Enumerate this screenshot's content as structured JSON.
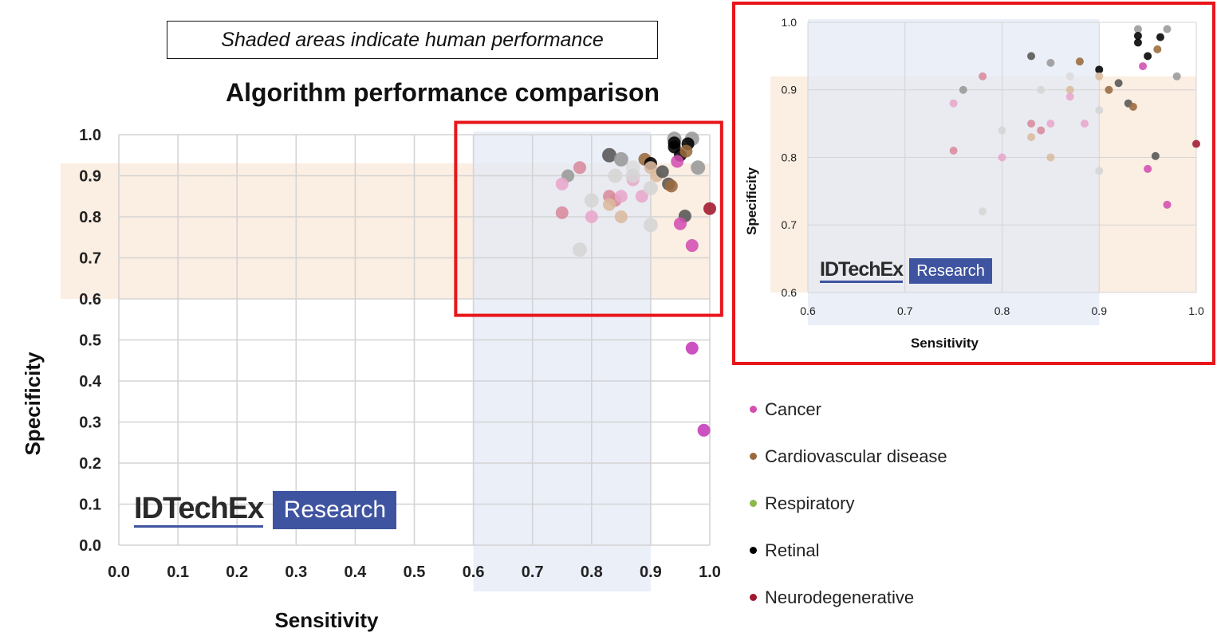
{
  "note": "Shaded areas indicate human performance",
  "colors": {
    "cancer": "#d24fb0",
    "cardio": "#9a6a3e",
    "respiratory": "#8db84a",
    "retinal": "#000000",
    "neuro": "#a0182e",
    "human_spec_band": "#fbeee2",
    "human_sens_band": "#e3e9f6",
    "highlight": "#e8161b",
    "logo_blue": "#3f54a0"
  },
  "legend": [
    {
      "label": "Cancer",
      "color": "#d24fb0"
    },
    {
      "label": "Cardiovascular disease",
      "color": "#9a6a3e"
    },
    {
      "label": "Respiratory",
      "color": "#8db84a"
    },
    {
      "label": "Retinal",
      "color": "#000000"
    },
    {
      "label": "Neurodegenerative",
      "color": "#a0182e"
    }
  ],
  "logo": {
    "brand": "IDTechEx",
    "badge": "Research"
  },
  "chart_data": [
    {
      "type": "scatter",
      "title": "Algorithm performance comparison",
      "xlabel": "Sensitivity",
      "ylabel": "Specificity",
      "xlim": [
        0.0,
        1.0
      ],
      "ylim": [
        0.0,
        1.0
      ],
      "xticks": [
        "0.0",
        "0.1",
        "0.2",
        "0.3",
        "0.4",
        "0.5",
        "0.6",
        "0.7",
        "0.8",
        "0.9",
        "1.0"
      ],
      "yticks": [
        "0.0",
        "0.1",
        "0.2",
        "0.3",
        "0.4",
        "0.5",
        "0.6",
        "0.7",
        "0.8",
        "0.9",
        "1.0"
      ],
      "grid": true,
      "human_performance": {
        "sensitivity": [
          0.6,
          0.9
        ],
        "specificity": [
          0.6,
          0.93
        ]
      },
      "highlight_region": {
        "sensitivity": [
          0.57,
          1.02
        ],
        "specificity": [
          0.56,
          1.03
        ]
      },
      "points": [
        {
          "x": 0.83,
          "y": 0.95,
          "color": "#555555",
          "r": 9
        },
        {
          "x": 0.85,
          "y": 0.94,
          "color": "#999999",
          "r": 9
        },
        {
          "x": 0.87,
          "y": 0.92,
          "color": "#dcdcdc",
          "r": 9
        },
        {
          "x": 0.78,
          "y": 0.92,
          "color": "#d88a9c",
          "r": 8
        },
        {
          "x": 0.76,
          "y": 0.9,
          "color": "#999999",
          "r": 8
        },
        {
          "x": 0.84,
          "y": 0.9,
          "color": "#d5d5d5",
          "r": 9
        },
        {
          "x": 0.87,
          "y": 0.89,
          "color": "#e8a6cb",
          "r": 8
        },
        {
          "x": 0.75,
          "y": 0.88,
          "color": "#e8a6cb",
          "r": 8
        },
        {
          "x": 0.8,
          "y": 0.84,
          "color": "#d5d5d5",
          "r": 9
        },
        {
          "x": 0.83,
          "y": 0.85,
          "color": "#d88a9c",
          "r": 8
        },
        {
          "x": 0.84,
          "y": 0.84,
          "color": "#d88a9c",
          "r": 8
        },
        {
          "x": 0.85,
          "y": 0.85,
          "color": "#e8a6cb",
          "r": 8
        },
        {
          "x": 0.83,
          "y": 0.83,
          "color": "#d9b99d",
          "r": 8
        },
        {
          "x": 0.885,
          "y": 0.85,
          "color": "#e8a6cb",
          "r": 8
        },
        {
          "x": 0.75,
          "y": 0.81,
          "color": "#d88a9c",
          "r": 8
        },
        {
          "x": 0.8,
          "y": 0.8,
          "color": "#e8a6cb",
          "r": 8
        },
        {
          "x": 0.85,
          "y": 0.8,
          "color": "#d9b99d",
          "r": 8
        },
        {
          "x": 0.78,
          "y": 0.72,
          "color": "#d5d5d5",
          "r": 9
        },
        {
          "x": 0.9,
          "y": 0.78,
          "color": "#d5d5d5",
          "r": 9
        },
        {
          "x": 0.9,
          "y": 0.87,
          "color": "#d5d5d5",
          "r": 9
        },
        {
          "x": 0.87,
          "y": 0.9,
          "color": "#d5d5d5",
          "r": 9
        },
        {
          "x": 0.89,
          "y": 0.94,
          "color": "#9a6a3e",
          "r": 8
        },
        {
          "x": 0.9,
          "y": 0.93,
          "color": "#000000",
          "r": 8
        },
        {
          "x": 0.9,
          "y": 0.92,
          "color": "#d9b99d",
          "r": 8
        },
        {
          "x": 0.91,
          "y": 0.9,
          "color": "#d9b99d",
          "r": 8
        },
        {
          "x": 0.92,
          "y": 0.91,
          "color": "#555555",
          "r": 8
        },
        {
          "x": 0.93,
          "y": 0.88,
          "color": "#555555",
          "r": 8
        },
        {
          "x": 0.935,
          "y": 0.875,
          "color": "#9a6a3e",
          "r": 8
        },
        {
          "x": 0.94,
          "y": 0.99,
          "color": "#999999",
          "r": 9
        },
        {
          "x": 0.97,
          "y": 0.99,
          "color": "#999999",
          "r": 9
        },
        {
          "x": 0.94,
          "y": 0.98,
          "color": "#000000",
          "r": 8
        },
        {
          "x": 0.94,
          "y": 0.97,
          "color": "#000000",
          "r": 8
        },
        {
          "x": 0.95,
          "y": 0.95,
          "color": "#000000",
          "r": 8
        },
        {
          "x": 0.963,
          "y": 0.978,
          "color": "#000000",
          "r": 8
        },
        {
          "x": 0.96,
          "y": 0.96,
          "color": "#9a6a3e",
          "r": 8
        },
        {
          "x": 0.945,
          "y": 0.935,
          "color": "#d24fb0",
          "r": 8
        },
        {
          "x": 0.98,
          "y": 0.92,
          "color": "#999999",
          "r": 9
        },
        {
          "x": 0.958,
          "y": 0.802,
          "color": "#555555",
          "r": 8
        },
        {
          "x": 0.95,
          "y": 0.783,
          "color": "#d24fb0",
          "r": 8
        },
        {
          "x": 0.97,
          "y": 0.73,
          "color": "#d24fb0",
          "r": 8
        },
        {
          "x": 1.0,
          "y": 0.82,
          "color": "#a0182e",
          "r": 8
        },
        {
          "x": 0.97,
          "y": 0.48,
          "color": "#c53ab8",
          "r": 8
        },
        {
          "x": 0.99,
          "y": 0.28,
          "color": "#c53ab8",
          "r": 8
        }
      ]
    },
    {
      "type": "scatter",
      "title": "",
      "xlabel": "Sensitivity",
      "ylabel": "Specificity",
      "xlim": [
        0.6,
        1.0
      ],
      "ylim": [
        0.6,
        1.0
      ],
      "xticks": [
        "0.6",
        "0.7",
        "0.8",
        "0.9",
        "1.0"
      ],
      "yticks": [
        "0.6",
        "0.7",
        "0.8",
        "0.9",
        "1.0"
      ],
      "grid": true,
      "human_performance": {
        "sensitivity": [
          0.6,
          0.9
        ],
        "specificity": [
          0.6,
          0.92
        ]
      },
      "points": [
        {
          "x": 0.94,
          "y": 0.99,
          "color": "#999999",
          "r": 5
        },
        {
          "x": 0.97,
          "y": 0.99,
          "color": "#999999",
          "r": 5
        },
        {
          "x": 0.94,
          "y": 0.98,
          "color": "#000000",
          "r": 5
        },
        {
          "x": 0.963,
          "y": 0.978,
          "color": "#000000",
          "r": 5
        },
        {
          "x": 0.94,
          "y": 0.97,
          "color": "#000000",
          "r": 5
        },
        {
          "x": 0.96,
          "y": 0.96,
          "color": "#9a6a3e",
          "r": 5
        },
        {
          "x": 0.95,
          "y": 0.95,
          "color": "#000000",
          "r": 5
        },
        {
          "x": 0.83,
          "y": 0.95,
          "color": "#555555",
          "r": 5
        },
        {
          "x": 0.85,
          "y": 0.94,
          "color": "#999999",
          "r": 5
        },
        {
          "x": 0.88,
          "y": 0.942,
          "color": "#9a6a3e",
          "r": 5
        },
        {
          "x": 0.945,
          "y": 0.935,
          "color": "#d24fb0",
          "r": 5
        },
        {
          "x": 0.9,
          "y": 0.93,
          "color": "#000000",
          "r": 5
        },
        {
          "x": 0.78,
          "y": 0.92,
          "color": "#d88a9c",
          "r": 5
        },
        {
          "x": 0.87,
          "y": 0.92,
          "color": "#dcdcdc",
          "r": 5
        },
        {
          "x": 0.9,
          "y": 0.92,
          "color": "#d9b99d",
          "r": 5
        },
        {
          "x": 0.98,
          "y": 0.92,
          "color": "#999999",
          "r": 5
        },
        {
          "x": 0.92,
          "y": 0.91,
          "color": "#555555",
          "r": 5
        },
        {
          "x": 0.76,
          "y": 0.9,
          "color": "#999999",
          "r": 5
        },
        {
          "x": 0.84,
          "y": 0.9,
          "color": "#d5d5d5",
          "r": 5
        },
        {
          "x": 0.87,
          "y": 0.9,
          "color": "#d9b99d",
          "r": 5
        },
        {
          "x": 0.91,
          "y": 0.9,
          "color": "#9a6a3e",
          "r": 5
        },
        {
          "x": 0.87,
          "y": 0.89,
          "color": "#e8a6cb",
          "r": 5
        },
        {
          "x": 0.75,
          "y": 0.88,
          "color": "#e8a6cb",
          "r": 5
        },
        {
          "x": 0.93,
          "y": 0.88,
          "color": "#555555",
          "r": 5
        },
        {
          "x": 0.935,
          "y": 0.875,
          "color": "#9a6a3e",
          "r": 5
        },
        {
          "x": 0.9,
          "y": 0.87,
          "color": "#d5d5d5",
          "r": 5
        },
        {
          "x": 0.83,
          "y": 0.85,
          "color": "#d88a9c",
          "r": 5
        },
        {
          "x": 0.85,
          "y": 0.85,
          "color": "#e8a6cb",
          "r": 5
        },
        {
          "x": 0.885,
          "y": 0.85,
          "color": "#e8a6cb",
          "r": 5
        },
        {
          "x": 0.8,
          "y": 0.84,
          "color": "#d5d5d5",
          "r": 5
        },
        {
          "x": 0.84,
          "y": 0.84,
          "color": "#d88a9c",
          "r": 5
        },
        {
          "x": 0.83,
          "y": 0.83,
          "color": "#d9b99d",
          "r": 5
        },
        {
          "x": 1.0,
          "y": 0.82,
          "color": "#a0182e",
          "r": 5
        },
        {
          "x": 0.75,
          "y": 0.81,
          "color": "#d88a9c",
          "r": 5
        },
        {
          "x": 0.8,
          "y": 0.8,
          "color": "#e8a6cb",
          "r": 5
        },
        {
          "x": 0.85,
          "y": 0.8,
          "color": "#d9b99d",
          "r": 5
        },
        {
          "x": 0.958,
          "y": 0.802,
          "color": "#555555",
          "r": 5
        },
        {
          "x": 0.95,
          "y": 0.783,
          "color": "#d24fb0",
          "r": 5
        },
        {
          "x": 0.9,
          "y": 0.78,
          "color": "#d5d5d5",
          "r": 5
        },
        {
          "x": 0.97,
          "y": 0.73,
          "color": "#d24fb0",
          "r": 5
        },
        {
          "x": 0.78,
          "y": 0.72,
          "color": "#d5d5d5",
          "r": 5
        }
      ]
    }
  ]
}
